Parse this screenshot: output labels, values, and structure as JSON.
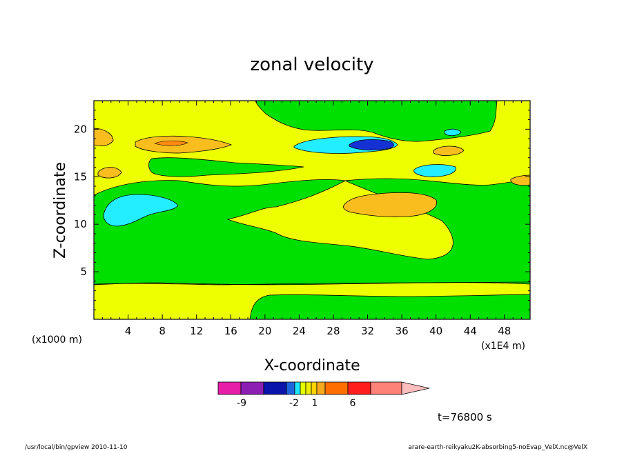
{
  "chart_data": {
    "type": "heatmap",
    "title": "zonal velocity",
    "xlabel": "X-coordinate",
    "ylabel": "Z-coordinate",
    "x_unit_label": "(x1E4 m)",
    "y_unit_label": "(x1000 m)",
    "xlim": [
      0,
      51
    ],
    "ylim": [
      0,
      23
    ],
    "x_ticks": [
      "4",
      "8",
      "12",
      "16",
      "20",
      "24",
      "28",
      "32",
      "36",
      "40",
      "44",
      "48"
    ],
    "x_tick_values": [
      4,
      8,
      12,
      16,
      20,
      24,
      28,
      32,
      36,
      40,
      44,
      48
    ],
    "y_ticks": [
      "5",
      "10",
      "15",
      "20"
    ],
    "y_tick_values": [
      5,
      10,
      15,
      20
    ],
    "time_label": "t=76800 s",
    "field_levels": {
      "background": "yellow",
      "lower_band": {
        "x": [
          0,
          51
        ],
        "z": [
          0,
          4
        ],
        "level": "yellow"
      },
      "central_green": {
        "x": [
          0,
          51
        ],
        "z": [
          4,
          16
        ],
        "level": "green"
      },
      "regions": [
        {
          "name": "cyan-low",
          "center": [
            3.5,
            11.5
          ],
          "level": "cyan"
        },
        {
          "name": "orange-mid",
          "center": [
            33,
            12.3
          ],
          "level": "orange"
        },
        {
          "name": "orange-upper-left",
          "center": [
            9.5,
            18.5
          ],
          "level": "orange"
        },
        {
          "name": "cyan-upper",
          "center": [
            30,
            18.3
          ],
          "level": "cyan"
        },
        {
          "name": "blue-core",
          "center": [
            32,
            18.3
          ],
          "level": "blue"
        },
        {
          "name": "cyan-small-right",
          "center": [
            40.5,
            15.5
          ],
          "level": "cyan"
        }
      ]
    },
    "colorbar": {
      "colors": [
        "#e61ea8",
        "#8c1eb4",
        "#0a14aa",
        "#1e64dc",
        "#1ee6ff",
        "#e6ff00",
        "#eeee00",
        "#ffd200",
        "#f5aa1e",
        "#ff6e00",
        "#ff1e1e",
        "#ff8278",
        "#ffbebe"
      ],
      "labels": [
        "-9",
        "-2",
        "1",
        "6"
      ],
      "label_values": [
        -9,
        -2,
        1,
        6
      ]
    }
  },
  "colors": {
    "yellow": "#eeff00",
    "green": "#00e000",
    "orange": "#f9be1e",
    "cyan": "#22eeff",
    "blue": "#1432d4"
  },
  "footer": {
    "left": "/usr/local/bin/gpview  2010-11-10",
    "right": "arare-earth-reikyaku2K-absorbing5-noEvap_VelX.nc@VelX"
  }
}
